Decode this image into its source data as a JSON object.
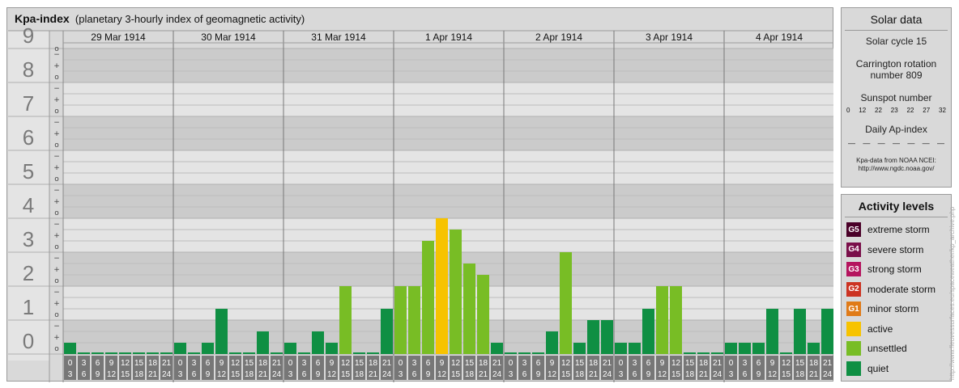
{
  "header": {
    "title": "Kpa-index",
    "subtitle": "(planetary 3-hourly index of geomagnetic activity)"
  },
  "chart_data": {
    "type": "bar",
    "title": "Kpa-index",
    "subtitle": "(planetary 3-hourly index of geomagnetic activity)",
    "ylim": [
      0,
      9
    ],
    "major_ticks": [
      "0",
      "1",
      "2",
      "3",
      "4",
      "5",
      "6",
      "7",
      "8",
      "9"
    ],
    "minor_tick_labels": [
      "o",
      "+",
      "−"
    ],
    "days": [
      "29 Mar 1914",
      "30 Mar 1914",
      "31 Mar 1914",
      "1 Apr 1914",
      "2 Apr 1914",
      "3 Apr 1914",
      "4 Apr 1914"
    ],
    "interval_top_labels": [
      "0",
      "3",
      "6",
      "9",
      "12",
      "15",
      "18",
      "21"
    ],
    "interval_bottom_labels": [
      "3",
      "6",
      "9",
      "12",
      "15",
      "18",
      "21",
      "24"
    ],
    "values": [
      [
        0.333,
        0,
        0,
        0,
        0,
        0,
        0,
        0
      ],
      [
        0.333,
        0,
        0.333,
        1.333,
        0,
        0,
        0.667,
        0
      ],
      [
        0.333,
        0,
        0.667,
        0.333,
        2,
        0,
        0,
        1.333
      ],
      [
        2,
        2,
        3.333,
        4,
        3.667,
        2.667,
        2.333,
        0.333
      ],
      [
        0,
        0,
        0,
        0.667,
        3,
        0.333,
        1,
        1
      ],
      [
        0.333,
        0.333,
        1.333,
        2,
        2,
        0,
        0,
        0
      ],
      [
        0.333,
        0.333,
        0.333,
        1.333,
        0,
        1.333,
        0.333,
        1.333
      ]
    ],
    "thresholds": {
      "unsettled": 1.833,
      "active": 3.833
    },
    "grid": true
  },
  "colors": {
    "panel_bg": "#d9d9d9",
    "band_dark": "#cbcbcb",
    "band_light": "#e4e4e4",
    "quiet": "#0f8f43",
    "unsettled": "#78bd25",
    "active": "#f7c300",
    "minor_storm": "#e07b18",
    "moderate_storm": "#cc3322",
    "strong_storm": "#b5145e",
    "severe_storm": "#7a0f4a",
    "extreme_storm": "#4a0028",
    "axis_number": "#7a7a7a",
    "label_box": "#777777"
  },
  "solar": {
    "title": "Solar data",
    "cycle": "Solar cycle 15",
    "rotation_line1": "Carrington rotation",
    "rotation_line2": "number 809",
    "sunspot_title": "Sunspot number",
    "sunspot_values": [
      "0",
      "12",
      "22",
      "23",
      "22",
      "27",
      "32"
    ],
    "ap_title": "Daily Ap-index",
    "ap_values": [
      "—",
      "—",
      "—",
      "—",
      "—",
      "—",
      "—"
    ],
    "source_line1": "Kpa-data from NOAA NCEI:",
    "source_line2": "http://www.ngdc.noaa.gov/"
  },
  "activity": {
    "title": "Activity levels",
    "levels": [
      {
        "badge": "G5",
        "label": "extreme storm",
        "color": "#4a0028"
      },
      {
        "badge": "G4",
        "label": "severe storm",
        "color": "#7a0f4a"
      },
      {
        "badge": "G3",
        "label": "strong storm",
        "color": "#b5145e"
      },
      {
        "badge": "G2",
        "label": "moderate storm",
        "color": "#cc3322"
      },
      {
        "badge": "G1",
        "label": "minor storm",
        "color": "#e07b18"
      },
      {
        "badge": "",
        "label": "active",
        "color": "#f7c300"
      },
      {
        "badge": "",
        "label": "unsettled",
        "color": "#78bd25"
      },
      {
        "badge": "",
        "label": "quiet",
        "color": "#0f8f43"
      }
    ]
  },
  "credit": "http://www.fleuvessurfaces.eu/spaceweather/kp_archive.php"
}
